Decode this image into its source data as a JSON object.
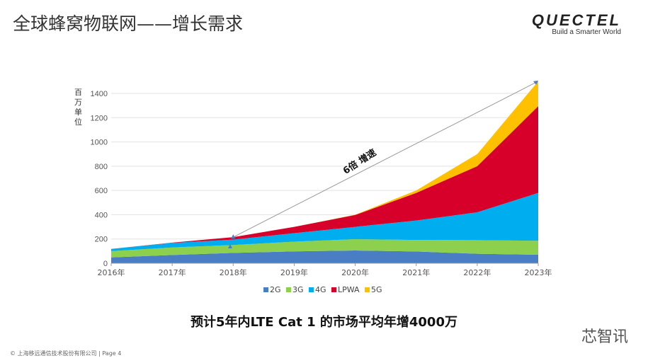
{
  "header": {
    "title": "全球蜂窝物联网——增长需求",
    "logo_text": "QUECTEL",
    "logo_tagline": "Build a Smarter World"
  },
  "chart_data": {
    "type": "area",
    "stacked": true,
    "ylabel": "百万单位",
    "ylim": [
      0,
      1400
    ],
    "yticks": [
      0,
      200,
      400,
      600,
      800,
      1000,
      1200,
      1400
    ],
    "categories": [
      "2016年",
      "2017年",
      "2018年",
      "2019年",
      "2020年",
      "2021年",
      "2022年",
      "2023年"
    ],
    "series": [
      {
        "name": "2G",
        "color": "#4A7EC4",
        "values": [
          48,
          68,
          85,
          98,
          105,
          97,
          78,
          70
        ]
      },
      {
        "name": "3G",
        "color": "#8DD04E",
        "values": [
          52,
          62,
          65,
          80,
          93,
          95,
          112,
          115
        ]
      },
      {
        "name": "4G",
        "color": "#00AEEF",
        "values": [
          18,
          38,
          45,
          70,
          102,
          160,
          230,
          395
        ]
      },
      {
        "name": "LPWA",
        "color": "#D7002A",
        "values": [
          0,
          2,
          20,
          52,
          98,
          228,
          380,
          715
        ]
      },
      {
        "name": "5G",
        "color": "#FFC000",
        "values": [
          0,
          0,
          0,
          0,
          2,
          20,
          100,
          205
        ]
      }
    ],
    "grid": true,
    "legend": "bottom",
    "annotation": {
      "text": "6倍 增速",
      "from": [
        "2018年",
        215
      ],
      "to": [
        "2023年",
        1500
      ]
    }
  },
  "conclusion": "预计5年内LTE Cat 1 的市场平均年增4000万",
  "footer": "© 上海移远通信技术股份有限公司 | Page 4",
  "watermark": "芯智讯"
}
